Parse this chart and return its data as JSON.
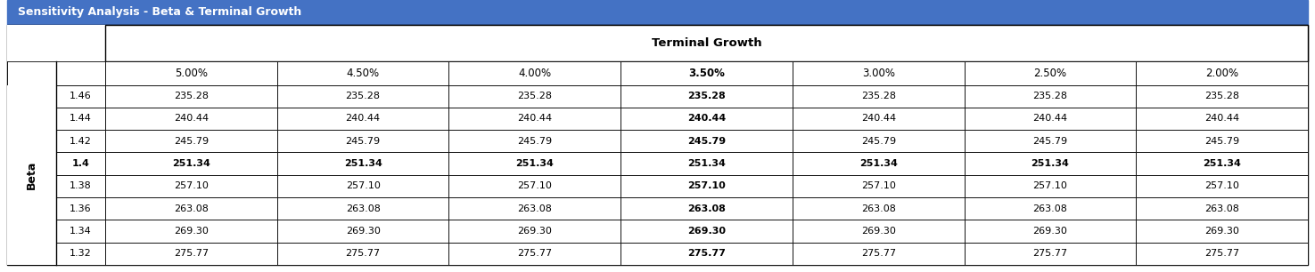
{
  "title": "Sensitivity Analysis - Beta & Terminal Growth",
  "title_bg_color": "#4472C4",
  "title_text_color": "#FFFFFF",
  "col_header_label": "Terminal Growth",
  "row_header_label": "Beta",
  "terminal_growth_cols": [
    "5.00%",
    "4.50%",
    "4.00%",
    "3.50%",
    "3.00%",
    "2.50%",
    "2.00%"
  ],
  "beta_rows": [
    "1.46",
    "1.44",
    "1.42",
    "1.4",
    "1.38",
    "1.36",
    "1.34",
    "1.32"
  ],
  "values": [
    [
      "235.28",
      "235.28",
      "235.28",
      "235.28",
      "235.28",
      "235.28",
      "235.28"
    ],
    [
      "240.44",
      "240.44",
      "240.44",
      "240.44",
      "240.44",
      "240.44",
      "240.44"
    ],
    [
      "245.79",
      "245.79",
      "245.79",
      "245.79",
      "245.79",
      "245.79",
      "245.79"
    ],
    [
      "251.34",
      "251.34",
      "251.34",
      "251.34",
      "251.34",
      "251.34",
      "251.34"
    ],
    [
      "257.10",
      "257.10",
      "257.10",
      "257.10",
      "257.10",
      "257.10",
      "257.10"
    ],
    [
      "263.08",
      "263.08",
      "263.08",
      "263.08",
      "263.08",
      "263.08",
      "263.08"
    ],
    [
      "269.30",
      "269.30",
      "269.30",
      "269.30",
      "269.30",
      "269.30",
      "269.30"
    ],
    [
      "275.77",
      "275.77",
      "275.77",
      "275.77",
      "275.77",
      "275.77",
      "275.77"
    ]
  ],
  "bold_col_index": 3,
  "bold_row_index": 3,
  "title_fontsize": 9,
  "header_fontsize": 9.5,
  "col_label_fontsize": 8.5,
  "data_fontsize": 8,
  "beta_label_fontsize": 9,
  "fig_width": 14.75,
  "fig_height": 3.06,
  "dpi": 100
}
